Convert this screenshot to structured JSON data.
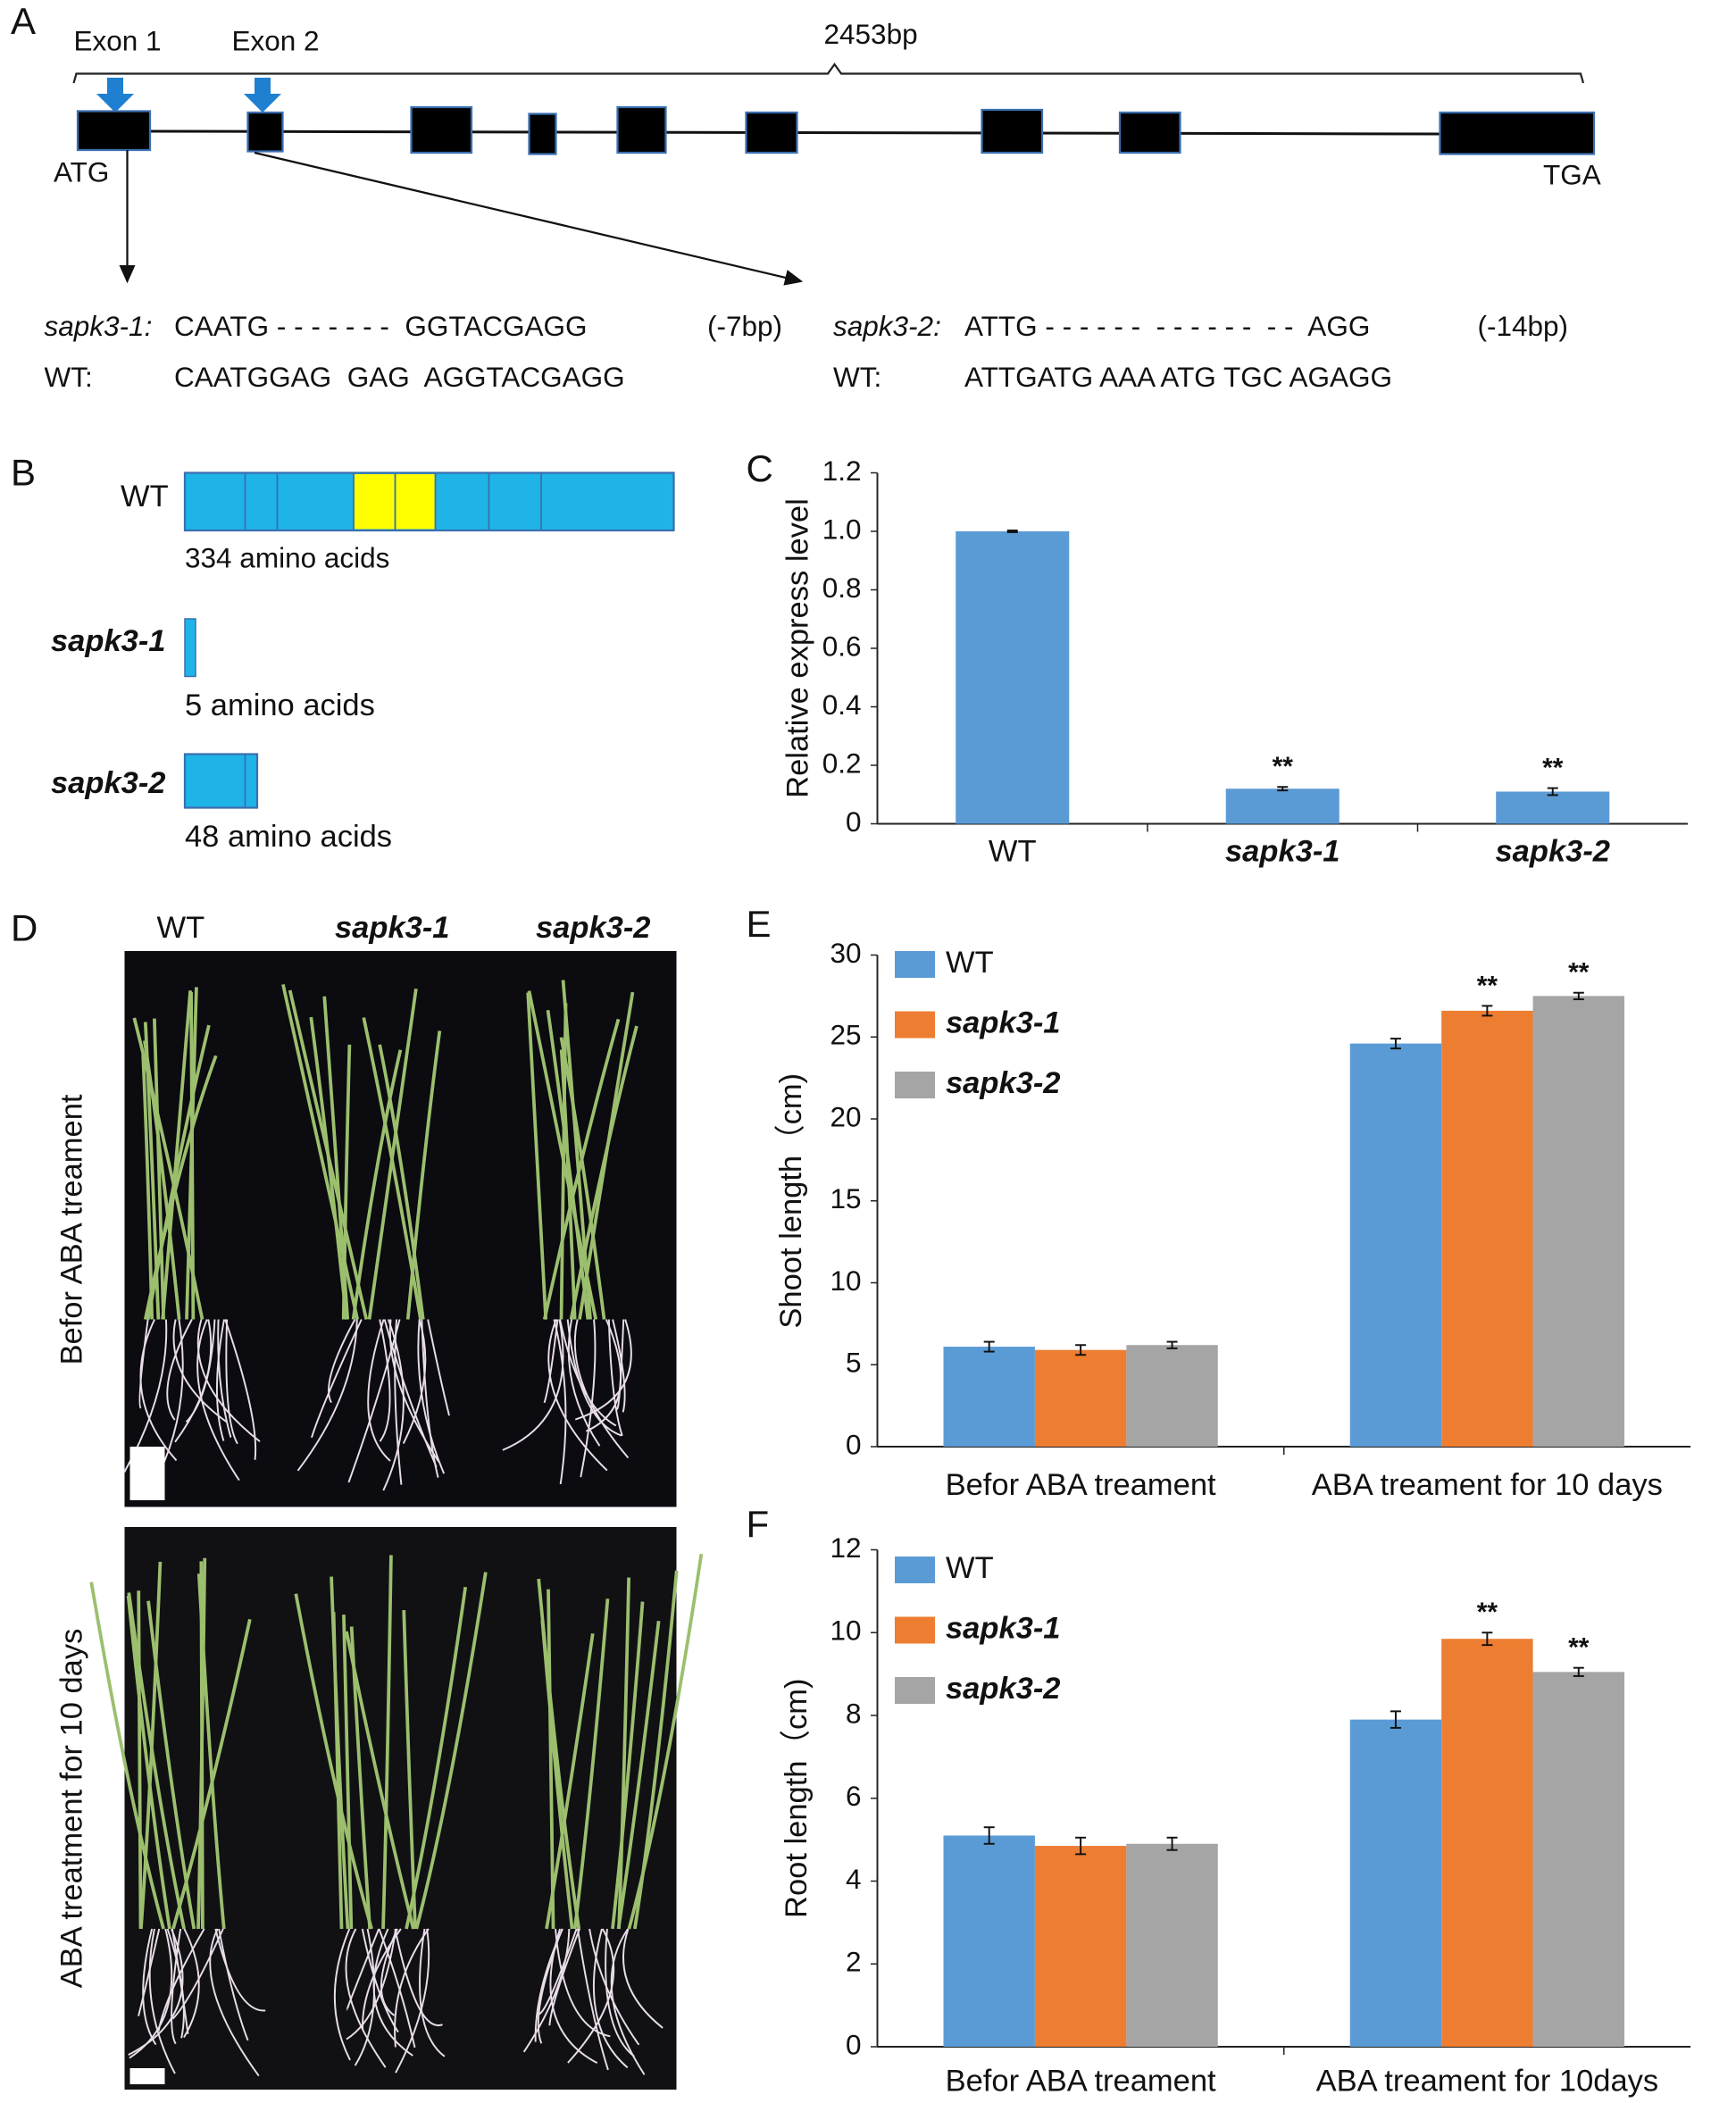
{
  "panel_a": {
    "label": "A",
    "exon1": "Exon 1",
    "exon2": "Exon 2",
    "length": "2453bp",
    "start": "ATG",
    "stop": "TGA",
    "sequences": [
      {
        "name": "sapk3-1:",
        "seq": "CAATG - - - - - - -  GGTACGAGG",
        "deletion": "(-7bp)",
        "wt_name": "WT:",
        "wt_seq": "CAATGGAG  GAG  AGGTACGAGG"
      },
      {
        "name": "sapk3-2:",
        "seq": "ATTG - - - - - -  - - - - - -  - -  AGG",
        "deletion": "(-14bp)",
        "wt_name": "WT:",
        "wt_seq": "ATTGATG AAA ATG TGC AGAGG"
      }
    ]
  },
  "panel_b": {
    "label": "B",
    "proteins": [
      {
        "name": "WT",
        "length": "334 amino acids"
      },
      {
        "name": "sapk3-1",
        "length": "5 amino acids"
      },
      {
        "name": "sapk3-2",
        "length": "48 amino acids"
      }
    ]
  },
  "panel_d": {
    "label": "D",
    "genotypes": [
      "WT",
      "sapk3-1",
      "sapk3-2"
    ],
    "conditions": [
      "Befor ABA treament",
      "ABA treatment for 10 days"
    ]
  },
  "chart_data": [
    {
      "type": "bar",
      "label": "C",
      "y_label": "Relative express level",
      "categories": [
        "WT",
        "sapk3-1",
        "sapk3-2"
      ],
      "values": [
        1.0,
        0.12,
        0.11
      ],
      "errors": [
        0.003,
        0.006,
        0.012
      ],
      "significance": [
        null,
        "**",
        "**"
      ],
      "color": "#5b9bd5",
      "ylim": [
        0,
        1.2
      ],
      "yticks": [
        0,
        0.2,
        0.4,
        0.6,
        0.8,
        {
          "value": 1,
          "label": "1.0"
        },
        1.2
      ]
    },
    {
      "type": "bar",
      "label": "E",
      "y_label": "Shoot length（cm)",
      "categories": [
        "Befor ABA treament",
        "ABA treament for 10 days"
      ],
      "series": [
        {
          "name": "WT",
          "color": "#5b9bd5",
          "values": [
            6.1,
            24.6
          ],
          "errors": [
            0.3,
            0.3
          ],
          "significance": [
            null,
            null
          ]
        },
        {
          "name": "sapk3-1",
          "color": "#ed7d31",
          "values": [
            5.9,
            26.6
          ],
          "errors": [
            0.3,
            0.3
          ],
          "significance": [
            null,
            "**"
          ]
        },
        {
          "name": "sapk3-2",
          "color": "#a5a5a5",
          "values": [
            6.2,
            27.5
          ],
          "errors": [
            0.2,
            0.2
          ],
          "significance": [
            null,
            "**"
          ]
        }
      ],
      "legend": "upper left",
      "ylim": [
        0,
        30
      ],
      "yticks": [
        0,
        5,
        10,
        15,
        20,
        25,
        30
      ]
    },
    {
      "type": "bar",
      "label": "F",
      "y_label": "Root length（cm)",
      "categories": [
        "Befor ABA treament",
        "ABA treament for 10days"
      ],
      "series": [
        {
          "name": "WT",
          "color": "#5b9bd5",
          "values": [
            5.1,
            7.9
          ],
          "errors": [
            0.2,
            0.2
          ],
          "significance": [
            null,
            null
          ]
        },
        {
          "name": "sapk3-1",
          "color": "#ed7d31",
          "values": [
            4.85,
            9.85
          ],
          "errors": [
            0.2,
            0.15
          ],
          "significance": [
            null,
            "**"
          ]
        },
        {
          "name": "sapk3-2",
          "color": "#a5a5a5",
          "values": [
            4.9,
            9.05
          ],
          "errors": [
            0.15,
            0.1
          ],
          "significance": [
            null,
            "**"
          ]
        }
      ],
      "legend": "upper left",
      "ylim": [
        0,
        12
      ],
      "yticks": [
        0,
        2,
        4,
        6,
        8,
        10,
        12
      ]
    }
  ]
}
